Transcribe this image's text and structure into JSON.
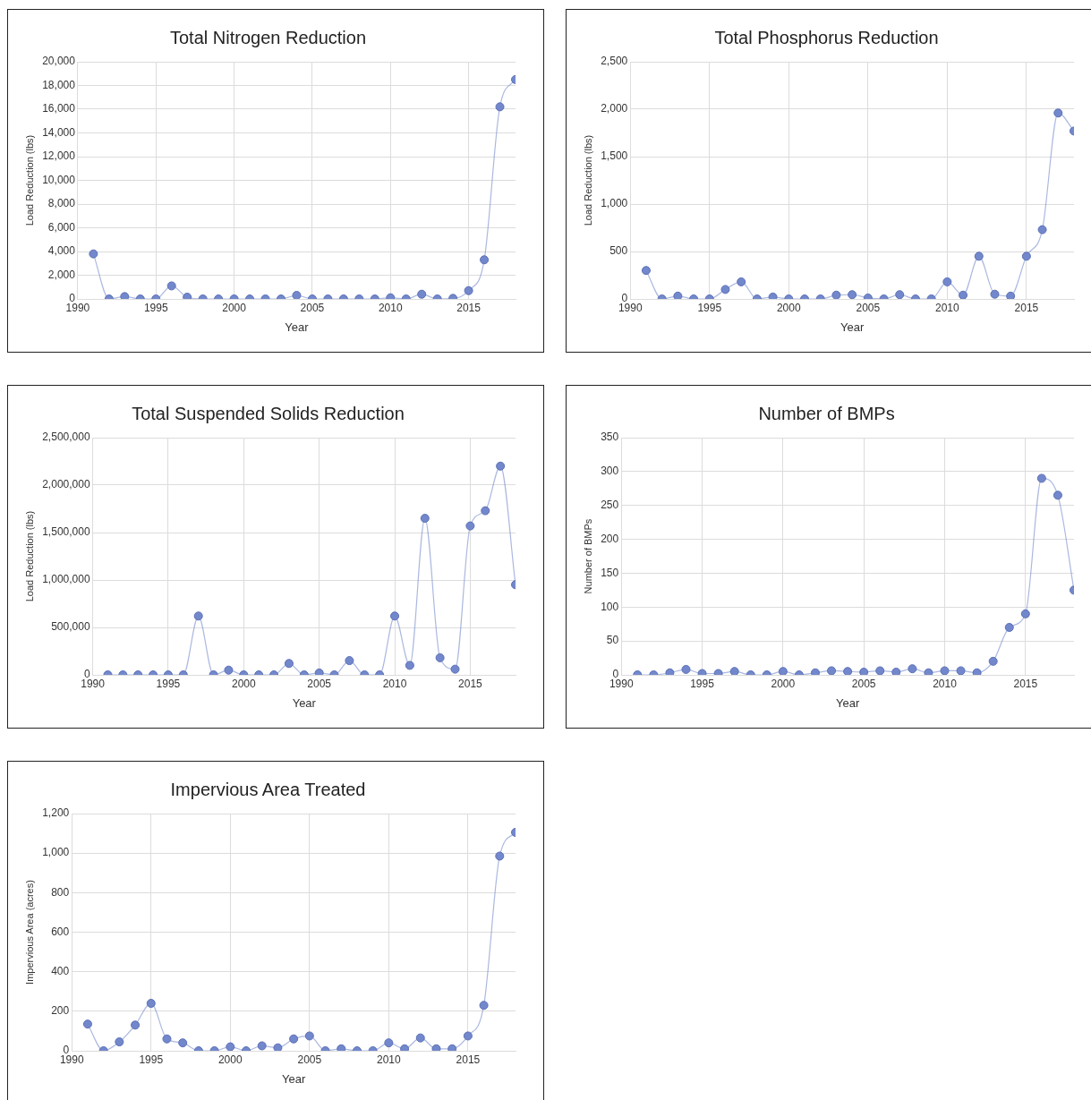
{
  "chart_data": [
    {
      "type": "line",
      "title": "Total Nitrogen Reduction",
      "xlabel": "Year",
      "ylabel": "Load Reduction (lbs)",
      "x": [
        1991,
        1992,
        1993,
        1994,
        1995,
        1996,
        1997,
        1998,
        1999,
        2000,
        2001,
        2002,
        2003,
        2004,
        2005,
        2006,
        2007,
        2008,
        2009,
        2010,
        2011,
        2012,
        2013,
        2014,
        2015,
        2016,
        2017,
        2018
      ],
      "series": [
        {
          "color": "#7388cc",
          "values": [
            3800,
            0,
            200,
            0,
            0,
            1100,
            150,
            0,
            0,
            0,
            0,
            0,
            0,
            300,
            0,
            0,
            0,
            0,
            0,
            100,
            0,
            400,
            0,
            50,
            700,
            3300,
            16200,
            18500
          ]
        }
      ],
      "xlim": [
        1990,
        2018
      ],
      "xticks": [
        1990,
        1995,
        2000,
        2005,
        2010,
        2015
      ],
      "ylim": [
        0,
        20000
      ],
      "yticks": [
        0,
        {
          "value": 2000,
          "label": "2,000"
        },
        {
          "value": 4000,
          "label": "4,000"
        },
        {
          "value": 6000,
          "label": "6,000"
        },
        {
          "value": 8000,
          "label": "8,000"
        },
        {
          "value": 10000,
          "label": "10,000"
        },
        {
          "value": 12000,
          "label": "12,000"
        },
        {
          "value": 14000,
          "label": "14,000"
        },
        {
          "value": 16000,
          "label": "16,000"
        },
        {
          "value": 18000,
          "label": "18,000"
        },
        {
          "value": 20000,
          "label": "20,000"
        }
      ],
      "grid": true,
      "marker": "circle"
    },
    {
      "type": "line",
      "title": "Total Phosphorus Reduction",
      "xlabel": "Year",
      "ylabel": "Load Reduction (lbs)",
      "x": [
        1991,
        1992,
        1993,
        1994,
        1995,
        1996,
        1997,
        1998,
        1999,
        2000,
        2001,
        2002,
        2003,
        2004,
        2005,
        2006,
        2007,
        2008,
        2009,
        2010,
        2011,
        2012,
        2013,
        2014,
        2015,
        2016,
        2017,
        2018
      ],
      "series": [
        {
          "color": "#7388cc",
          "values": [
            300,
            0,
            30,
            0,
            0,
            100,
            180,
            0,
            20,
            0,
            0,
            0,
            40,
            45,
            10,
            0,
            45,
            0,
            0,
            180,
            40,
            450,
            50,
            30,
            450,
            730,
            1960,
            1770
          ]
        }
      ],
      "xlim": [
        1990,
        2018
      ],
      "xticks": [
        1990,
        1995,
        2000,
        2005,
        2010,
        2015
      ],
      "ylim": [
        0,
        2500
      ],
      "yticks": [
        0,
        500,
        {
          "value": 1000,
          "label": "1,000"
        },
        {
          "value": 1500,
          "label": "1,500"
        },
        {
          "value": 2000,
          "label": "2,000"
        },
        {
          "value": 2500,
          "label": "2,500"
        }
      ],
      "grid": true,
      "marker": "circle"
    },
    {
      "type": "line",
      "title": "Total Suspended Solids Reduction",
      "xlabel": "Year",
      "ylabel": "Load Reduction (lbs)",
      "x": [
        1991,
        1992,
        1993,
        1994,
        1995,
        1996,
        1997,
        1998,
        1999,
        2000,
        2001,
        2002,
        2003,
        2004,
        2005,
        2006,
        2007,
        2008,
        2009,
        2010,
        2011,
        2012,
        2013,
        2014,
        2015,
        2016,
        2017,
        2018
      ],
      "series": [
        {
          "color": "#7388cc",
          "values": [
            0,
            0,
            0,
            0,
            0,
            0,
            620000,
            0,
            50000,
            0,
            0,
            0,
            120000,
            0,
            20000,
            0,
            150000,
            0,
            0,
            620000,
            100000,
            1650000,
            180000,
            60000,
            1570000,
            1730000,
            2200000,
            950000
          ]
        }
      ],
      "xlim": [
        1990,
        2018
      ],
      "xticks": [
        1990,
        1995,
        2000,
        2005,
        2010,
        2015
      ],
      "ylim": [
        0,
        2500000
      ],
      "yticks": [
        0,
        {
          "value": 500000,
          "label": "500,000"
        },
        {
          "value": 1000000,
          "label": "1,000,000"
        },
        {
          "value": 1500000,
          "label": "1,500,000"
        },
        {
          "value": 2000000,
          "label": "2,000,000"
        },
        {
          "value": 2500000,
          "label": "2,500,000"
        }
      ],
      "grid": true,
      "marker": "circle"
    },
    {
      "type": "line",
      "title": "Number of BMPs",
      "xlabel": "Year",
      "ylabel": "Number of BMPs",
      "x": [
        1991,
        1992,
        1993,
        1994,
        1995,
        1996,
        1997,
        1998,
        1999,
        2000,
        2001,
        2002,
        2003,
        2004,
        2005,
        2006,
        2007,
        2008,
        2009,
        2010,
        2011,
        2012,
        2013,
        2014,
        2015,
        2016,
        2017,
        2018
      ],
      "series": [
        {
          "color": "#7388cc",
          "values": [
            0,
            0,
            3,
            8,
            2,
            2,
            5,
            0,
            0,
            5,
            0,
            3,
            6,
            5,
            4,
            6,
            4,
            9,
            3,
            6,
            6,
            3,
            20,
            70,
            90,
            290,
            265,
            125
          ]
        }
      ],
      "xlim": [
        1990,
        2018
      ],
      "xticks": [
        1990,
        1995,
        2000,
        2005,
        2010,
        2015
      ],
      "ylim": [
        0,
        350
      ],
      "yticks": [
        0,
        50,
        100,
        150,
        200,
        250,
        300,
        350
      ],
      "grid": true,
      "marker": "circle"
    },
    {
      "type": "line",
      "title": "Impervious Area Treated",
      "xlabel": "Year",
      "ylabel": "Impervious Area (acres)",
      "x": [
        1991,
        1992,
        1993,
        1994,
        1995,
        1996,
        1997,
        1998,
        1999,
        2000,
        2001,
        2002,
        2003,
        2004,
        2005,
        2006,
        2007,
        2008,
        2009,
        2010,
        2011,
        2012,
        2013,
        2014,
        2015,
        2016,
        2017,
        2018
      ],
      "series": [
        {
          "color": "#7388cc",
          "values": [
            135,
            0,
            45,
            130,
            240,
            60,
            40,
            0,
            0,
            20,
            0,
            25,
            15,
            60,
            75,
            0,
            10,
            0,
            0,
            40,
            10,
            65,
            10,
            10,
            75,
            230,
            985,
            1105
          ]
        }
      ],
      "xlim": [
        1990,
        2018
      ],
      "xticks": [
        1990,
        1995,
        2000,
        2005,
        2010,
        2015
      ],
      "ylim": [
        0,
        1200
      ],
      "yticks": [
        0,
        200,
        400,
        600,
        800,
        {
          "value": 1000,
          "label": "1,000"
        },
        {
          "value": 1200,
          "label": "1,200"
        }
      ],
      "grid": true,
      "marker": "circle"
    }
  ]
}
